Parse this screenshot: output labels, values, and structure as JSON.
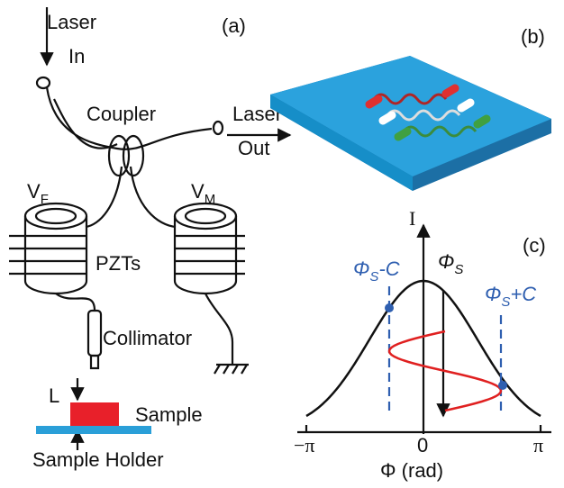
{
  "panel_a": {
    "label": "(a)",
    "laser_in": [
      "Laser",
      "In"
    ],
    "coupler": "Coupler",
    "laser_out": [
      "Laser",
      "Out"
    ],
    "vf": {
      "main": "V",
      "sub": "F"
    },
    "vm": {
      "main": "V",
      "sub": "M"
    },
    "pzts": "PZTs",
    "collimator": "Collimator",
    "thickness": "L",
    "sample": "Sample",
    "sample_holder": "Sample Holder"
  },
  "panel_b": {
    "label": "(b)"
  },
  "panel_c": {
    "label": "(c)",
    "y_axis": "I",
    "x_axis": "Φ (rad)",
    "xticks": [
      "−π",
      "0",
      "π"
    ],
    "phi_s": {
      "main": "Φ",
      "sub": "S"
    },
    "phi_minus": {
      "main": "Φ",
      "sub": "S",
      "rest": "-C"
    },
    "phi_plus": {
      "main": "Φ",
      "sub": "S",
      "rest": "+C"
    }
  }
}
